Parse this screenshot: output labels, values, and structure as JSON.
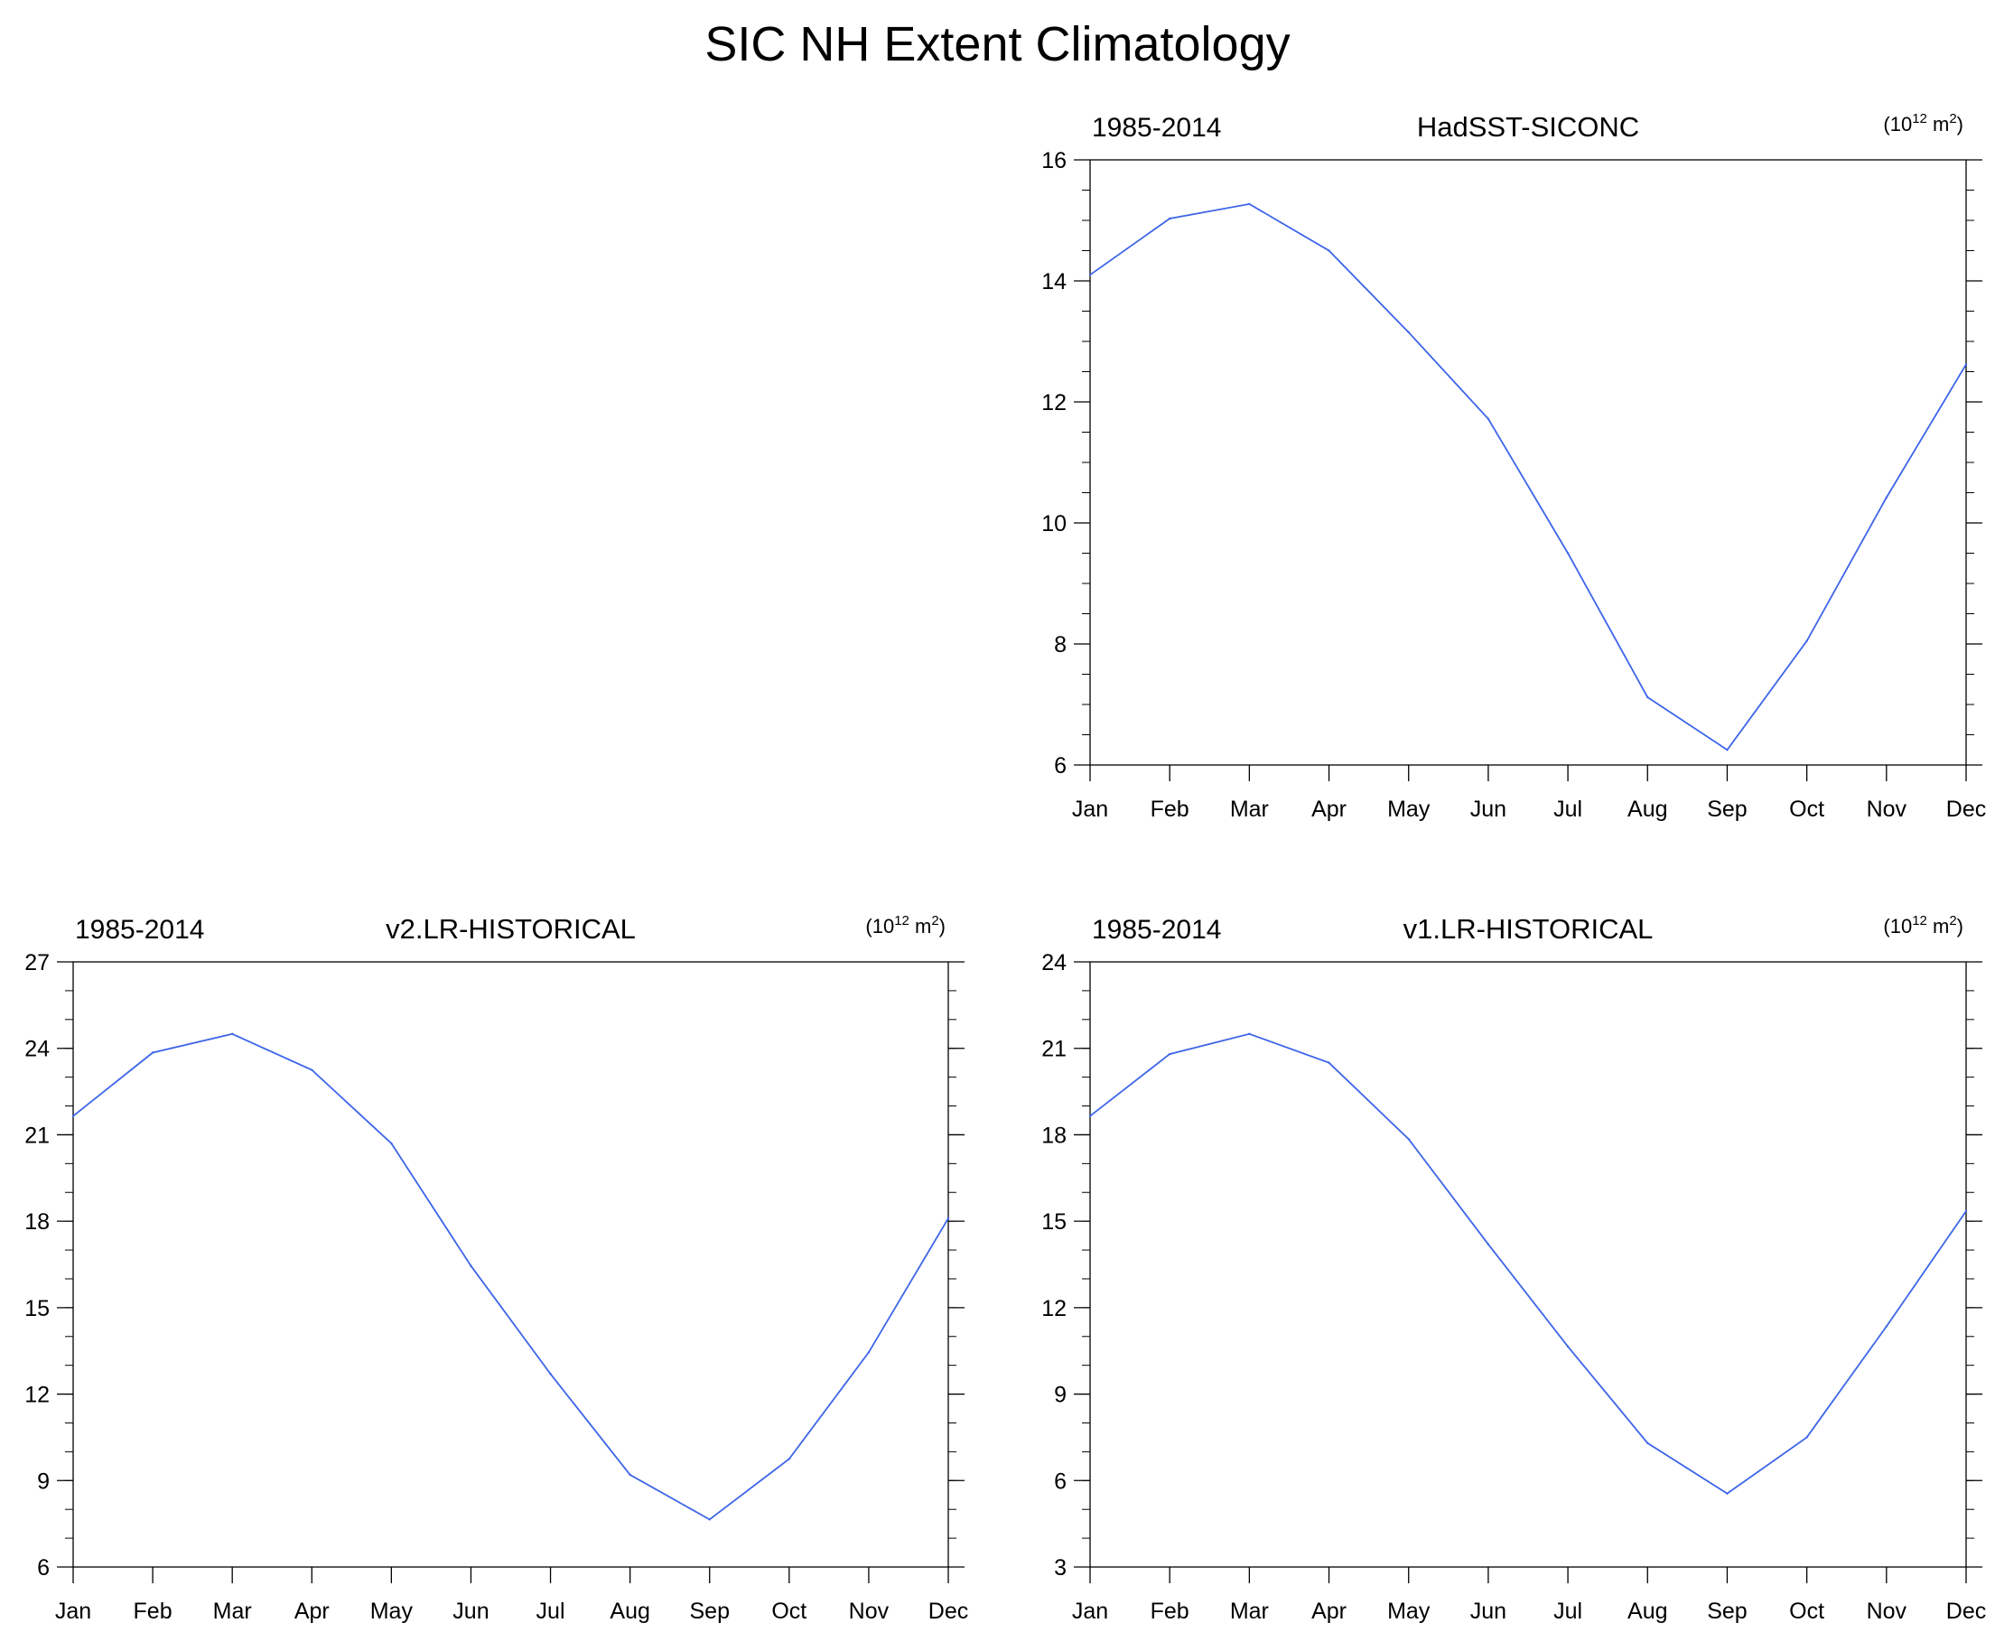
{
  "title": "SIC NH Extent Climatology",
  "chart_data": [
    {
      "type": "line",
      "left_title": "1985-2014",
      "center_title": "HadSST-SICONC",
      "units": {
        "base": "(10",
        "exp": "12",
        "mid": " m",
        "exp2": "2",
        "tail": ")"
      },
      "categories": [
        "Jan",
        "Feb",
        "Mar",
        "Apr",
        "May",
        "Jun",
        "Jul",
        "Aug",
        "Sep",
        "Oct",
        "Nov",
        "Dec"
      ],
      "series": [
        {
          "values": [
            14.1,
            15.03,
            15.27,
            14.5,
            13.15,
            11.72,
            9.5,
            7.12,
            6.25,
            8.05,
            10.42,
            12.62
          ]
        }
      ],
      "ylim": [
        6,
        16
      ],
      "yticks": [
        6,
        8,
        10,
        12,
        14,
        16
      ],
      "minor_step": 0.5,
      "line_color": "#3d65e8",
      "grid": false
    },
    {
      "type": "line",
      "left_title": "1985-2014",
      "center_title": "v2.LR-HISTORICAL",
      "units": {
        "base": "(10",
        "exp": "12",
        "mid": " m",
        "exp2": "2",
        "tail": ")"
      },
      "categories": [
        "Jan",
        "Feb",
        "Mar",
        "Apr",
        "May",
        "Jun",
        "Jul",
        "Aug",
        "Sep",
        "Oct",
        "Nov",
        "Dec"
      ],
      "series": [
        {
          "values": [
            21.65,
            23.85,
            24.5,
            23.25,
            20.7,
            16.45,
            12.7,
            9.2,
            7.65,
            9.75,
            13.45,
            18.1
          ]
        }
      ],
      "ylim": [
        6,
        27
      ],
      "yticks": [
        6,
        9,
        12,
        15,
        18,
        21,
        24,
        27
      ],
      "minor_step": 1,
      "line_color": "#3d65e8",
      "grid": false
    },
    {
      "type": "line",
      "left_title": "1985-2014",
      "center_title": "v1.LR-HISTORICAL",
      "units": {
        "base": "(10",
        "exp": "12",
        "mid": " m",
        "exp2": "2",
        "tail": ")"
      },
      "categories": [
        "Jan",
        "Feb",
        "Mar",
        "Apr",
        "May",
        "Jun",
        "Jul",
        "Aug",
        "Sep",
        "Oct",
        "Nov",
        "Dec"
      ],
      "series": [
        {
          "values": [
            18.65,
            20.8,
            21.5,
            20.5,
            17.85,
            14.2,
            10.65,
            7.3,
            5.55,
            7.5,
            11.35,
            15.35
          ]
        }
      ],
      "ylim": [
        3,
        24
      ],
      "yticks": [
        3,
        6,
        9,
        12,
        15,
        18,
        21,
        24
      ],
      "minor_step": 1,
      "line_color": "#3d65e8",
      "grid": false
    }
  ]
}
